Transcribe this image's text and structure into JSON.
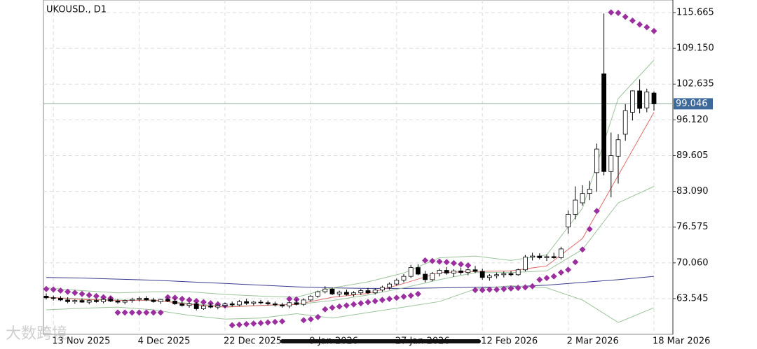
{
  "chart_data": {
    "type": "candlestick",
    "title": "UKOUSD., D1",
    "categories": [
      "",
      "13 Nov 2025",
      null,
      null,
      null,
      null,
      null,
      null,
      null,
      null,
      null,
      null,
      null,
      "4 Dec 2025",
      null,
      null,
      null,
      null,
      null,
      null,
      null,
      null,
      null,
      null,
      null,
      "22 Dec 2025",
      null,
      null,
      null,
      null,
      null,
      null,
      null,
      null,
      null,
      null,
      null,
      "9 Jan 2026",
      null,
      null,
      null,
      null,
      null,
      null,
      null,
      null,
      null,
      null,
      null,
      "27 Jan 2026",
      null,
      null,
      null,
      null,
      null,
      null,
      null,
      null,
      null,
      null,
      null,
      "12 Feb 2026",
      null,
      null,
      null,
      null,
      null,
      null,
      null,
      null,
      null,
      null,
      null,
      "2 Mar 2026",
      null,
      null,
      null,
      null,
      null,
      null,
      null,
      null,
      null,
      null,
      null,
      "18 Mar 2026"
    ],
    "open": [
      64.0,
      63.7,
      63.6,
      63.3,
      63.0,
      63.2,
      62.9,
      63.2,
      63.0,
      63.4,
      63.1,
      62.9,
      63.2,
      63.4,
      63.6,
      63.3,
      63.0,
      63.4,
      63.1,
      62.6,
      62.3,
      62.6,
      61.7,
      62.2,
      62.0,
      62.3,
      62.6,
      62.4,
      63.0,
      62.7,
      62.9,
      62.8,
      62.6,
      62.4,
      62.2,
      62.8,
      62.5,
      63.3,
      64.0,
      64.8,
      65.3,
      64.4,
      64.7,
      64.3,
      64.6,
      65.0,
      64.6,
      65.1,
      65.6,
      66.2,
      66.9,
      67.6,
      69.2,
      68.0,
      67.0,
      68.1,
      68.7,
      68.2,
      68.6,
      68.3,
      68.8,
      68.5,
      67.4,
      67.7,
      67.9,
      68.1,
      67.9,
      68.8,
      71.1,
      71.3,
      71.0,
      71.2,
      71.0,
      76.6,
      78.9,
      81.0,
      82.7,
      86.5,
      104.5,
      86.7,
      89.5,
      93.5,
      97.5,
      101.4,
      98.3,
      101.0
    ],
    "high": [
      64.5,
      64.1,
      64.0,
      63.8,
      63.4,
      63.6,
      63.4,
      63.5,
      63.6,
      63.9,
      63.5,
      63.4,
      63.7,
      63.9,
      64.0,
      63.7,
      63.5,
      63.8,
      63.6,
      63.0,
      62.8,
      62.9,
      62.4,
      62.7,
      62.5,
      62.8,
      63.0,
      63.3,
      63.5,
      63.1,
      63.3,
      63.2,
      63.0,
      62.8,
      63.0,
      63.4,
      63.6,
      64.2,
      65.0,
      65.8,
      65.6,
      65.0,
      65.2,
      64.9,
      65.3,
      65.5,
      65.4,
      65.9,
      66.5,
      67.2,
      68.0,
      69.7,
      69.8,
      68.6,
      68.4,
      69.0,
      69.3,
      68.9,
      69.2,
      69.0,
      69.5,
      69.0,
      68.0,
      68.3,
      68.5,
      68.6,
      69.0,
      71.5,
      71.9,
      71.8,
      71.6,
      71.9,
      73.0,
      79.6,
      84.0,
      84.2,
      85.0,
      91.8,
      115.5,
      93.8,
      93.5,
      99.0,
      101.5,
      103.5,
      101.8,
      101.3
    ],
    "low": [
      63.4,
      63.2,
      63.1,
      62.7,
      62.6,
      62.8,
      62.5,
      62.8,
      62.7,
      62.9,
      62.6,
      62.5,
      62.8,
      63.0,
      63.1,
      62.8,
      62.6,
      62.9,
      62.4,
      62.1,
      61.9,
      61.4,
      61.5,
      61.8,
      61.6,
      61.9,
      62.1,
      62.2,
      62.4,
      62.3,
      62.5,
      62.3,
      62.1,
      61.9,
      61.8,
      62.3,
      62.2,
      63.0,
      63.7,
      64.5,
      64.2,
      63.9,
      64.1,
      63.9,
      64.2,
      64.4,
      64.3,
      64.8,
      65.2,
      65.9,
      66.5,
      67.3,
      67.8,
      66.5,
      66.7,
      67.6,
      67.9,
      67.5,
      67.9,
      67.8,
      68.2,
      67.0,
      66.8,
      67.2,
      67.4,
      67.6,
      67.7,
      68.5,
      70.5,
      70.7,
      70.4,
      70.8,
      70.7,
      75.4,
      78.0,
      80.5,
      81.5,
      83.0,
      86.0,
      82.0,
      84.5,
      92.3,
      96.0,
      97.3,
      97.5,
      97.8
    ],
    "close": [
      63.7,
      63.6,
      63.3,
      63.0,
      63.2,
      62.9,
      63.2,
      63.0,
      63.4,
      63.1,
      62.9,
      63.2,
      63.4,
      63.6,
      63.3,
      63.0,
      63.4,
      63.1,
      62.6,
      62.3,
      62.6,
      61.7,
      62.2,
      62.0,
      62.3,
      62.6,
      62.4,
      63.0,
      62.7,
      62.9,
      62.8,
      62.6,
      62.4,
      62.2,
      62.8,
      62.5,
      63.3,
      64.0,
      64.8,
      65.3,
      64.4,
      64.7,
      64.3,
      64.6,
      65.0,
      64.6,
      65.1,
      65.6,
      66.2,
      66.9,
      67.6,
      69.2,
      68.0,
      67.0,
      68.1,
      68.7,
      68.2,
      68.6,
      68.3,
      68.8,
      68.5,
      67.4,
      67.7,
      67.9,
      68.1,
      67.9,
      68.8,
      71.1,
      71.3,
      71.0,
      71.2,
      71.0,
      72.6,
      78.9,
      81.5,
      82.7,
      83.5,
      90.8,
      86.7,
      89.6,
      92.5,
      97.8,
      101.4,
      98.2,
      101.2,
      99.046
    ],
    "up_color": "#ffffff",
    "down_color": "#000000",
    "wick_color": "#000000",
    "sar": {
      "color": "#9b2f9f",
      "values": [
        65.3,
        65.2,
        65.0,
        64.8,
        64.6,
        64.4,
        64.2,
        64.0,
        63.8,
        63.6,
        61.0,
        61.0,
        61.0,
        61.0,
        61.0,
        61.0,
        61.0,
        63.8,
        63.7,
        63.5,
        63.3,
        63.1,
        62.9,
        62.7,
        62.5,
        62.3,
        58.7,
        58.8,
        58.9,
        59.0,
        59.1,
        59.2,
        59.3,
        59.4,
        63.5,
        63.4,
        59.6,
        59.8,
        60.2,
        61.6,
        61.9,
        62.1,
        62.3,
        62.5,
        62.7,
        62.9,
        63.1,
        63.3,
        63.5,
        63.7,
        63.9,
        64.1,
        64.4,
        70.5,
        70.4,
        70.3,
        70.2,
        70.0,
        69.8,
        69.6,
        65.1,
        65.1,
        65.2,
        65.2,
        65.3,
        65.4,
        65.5,
        65.6,
        65.8,
        67.0,
        67.3,
        67.6,
        68.3,
        68.8,
        70.2,
        72.5,
        76.2,
        79.5,
        null,
        115.7,
        115.6,
        114.9,
        114.2,
        113.5,
        113.0,
        112.3
      ]
    },
    "line_x": [
      0,
      5,
      10,
      15,
      20,
      25,
      30,
      35,
      40,
      45,
      50,
      55,
      60,
      65,
      70,
      75,
      80,
      85
    ],
    "lines": [
      {
        "color": "#3b3b8f",
        "values": [
          67.4,
          67.3,
          67.1,
          66.9,
          66.6,
          66.3,
          66.0,
          65.7,
          65.5,
          65.4,
          65.4,
          65.5,
          65.6,
          65.7,
          66.0,
          66.5,
          67.0,
          67.6
        ]
      },
      {
        "color": "#9cc49c",
        "values": [
          65.5,
          65.0,
          64.6,
          64.8,
          64.8,
          64.3,
          64.0,
          63.8,
          65.5,
          66.6,
          68.2,
          71.0,
          71.3,
          70.5,
          71.5,
          80.0,
          100.0,
          107.0
        ]
      },
      {
        "color": "#9cc49c",
        "values": [
          61.5,
          61.8,
          62.0,
          61.5,
          60.5,
          59.8,
          60.0,
          60.8,
          60.0,
          61.0,
          62.0,
          63.0,
          65.3,
          65.9,
          65.5,
          63.3,
          59.2,
          61.9
        ]
      },
      {
        "color": "#9cc49c",
        "values": [
          63.8,
          63.5,
          63.3,
          63.2,
          62.7,
          62.1,
          62.3,
          62.5,
          63.2,
          64.2,
          65.5,
          67.0,
          68.3,
          68.3,
          68.6,
          72.5,
          81.0,
          84.0
        ]
      },
      {
        "color": "#e06a6a",
        "values": [
          63.8,
          63.4,
          63.2,
          63.3,
          62.5,
          62.0,
          62.3,
          62.5,
          63.8,
          64.5,
          66.3,
          68.3,
          68.5,
          68.6,
          69.5,
          74.5,
          86.0,
          97.5
        ]
      }
    ],
    "ylim": [
      57.04,
      117.96
    ],
    "yticks": [
      63.545,
      {
        "value": 70.06,
        "label": "70.060"
      },
      76.575,
      {
        "value": 83.09,
        "label": "83.090"
      },
      89.605,
      {
        "value": 96.12,
        "label": "96.120"
      },
      102.635,
      {
        "value": 109.15,
        "label": "109.150"
      },
      115.665
    ],
    "current_price": 99.046,
    "price_color": "#3d6a9a",
    "grid": true
  },
  "watermark": "大数跨境"
}
